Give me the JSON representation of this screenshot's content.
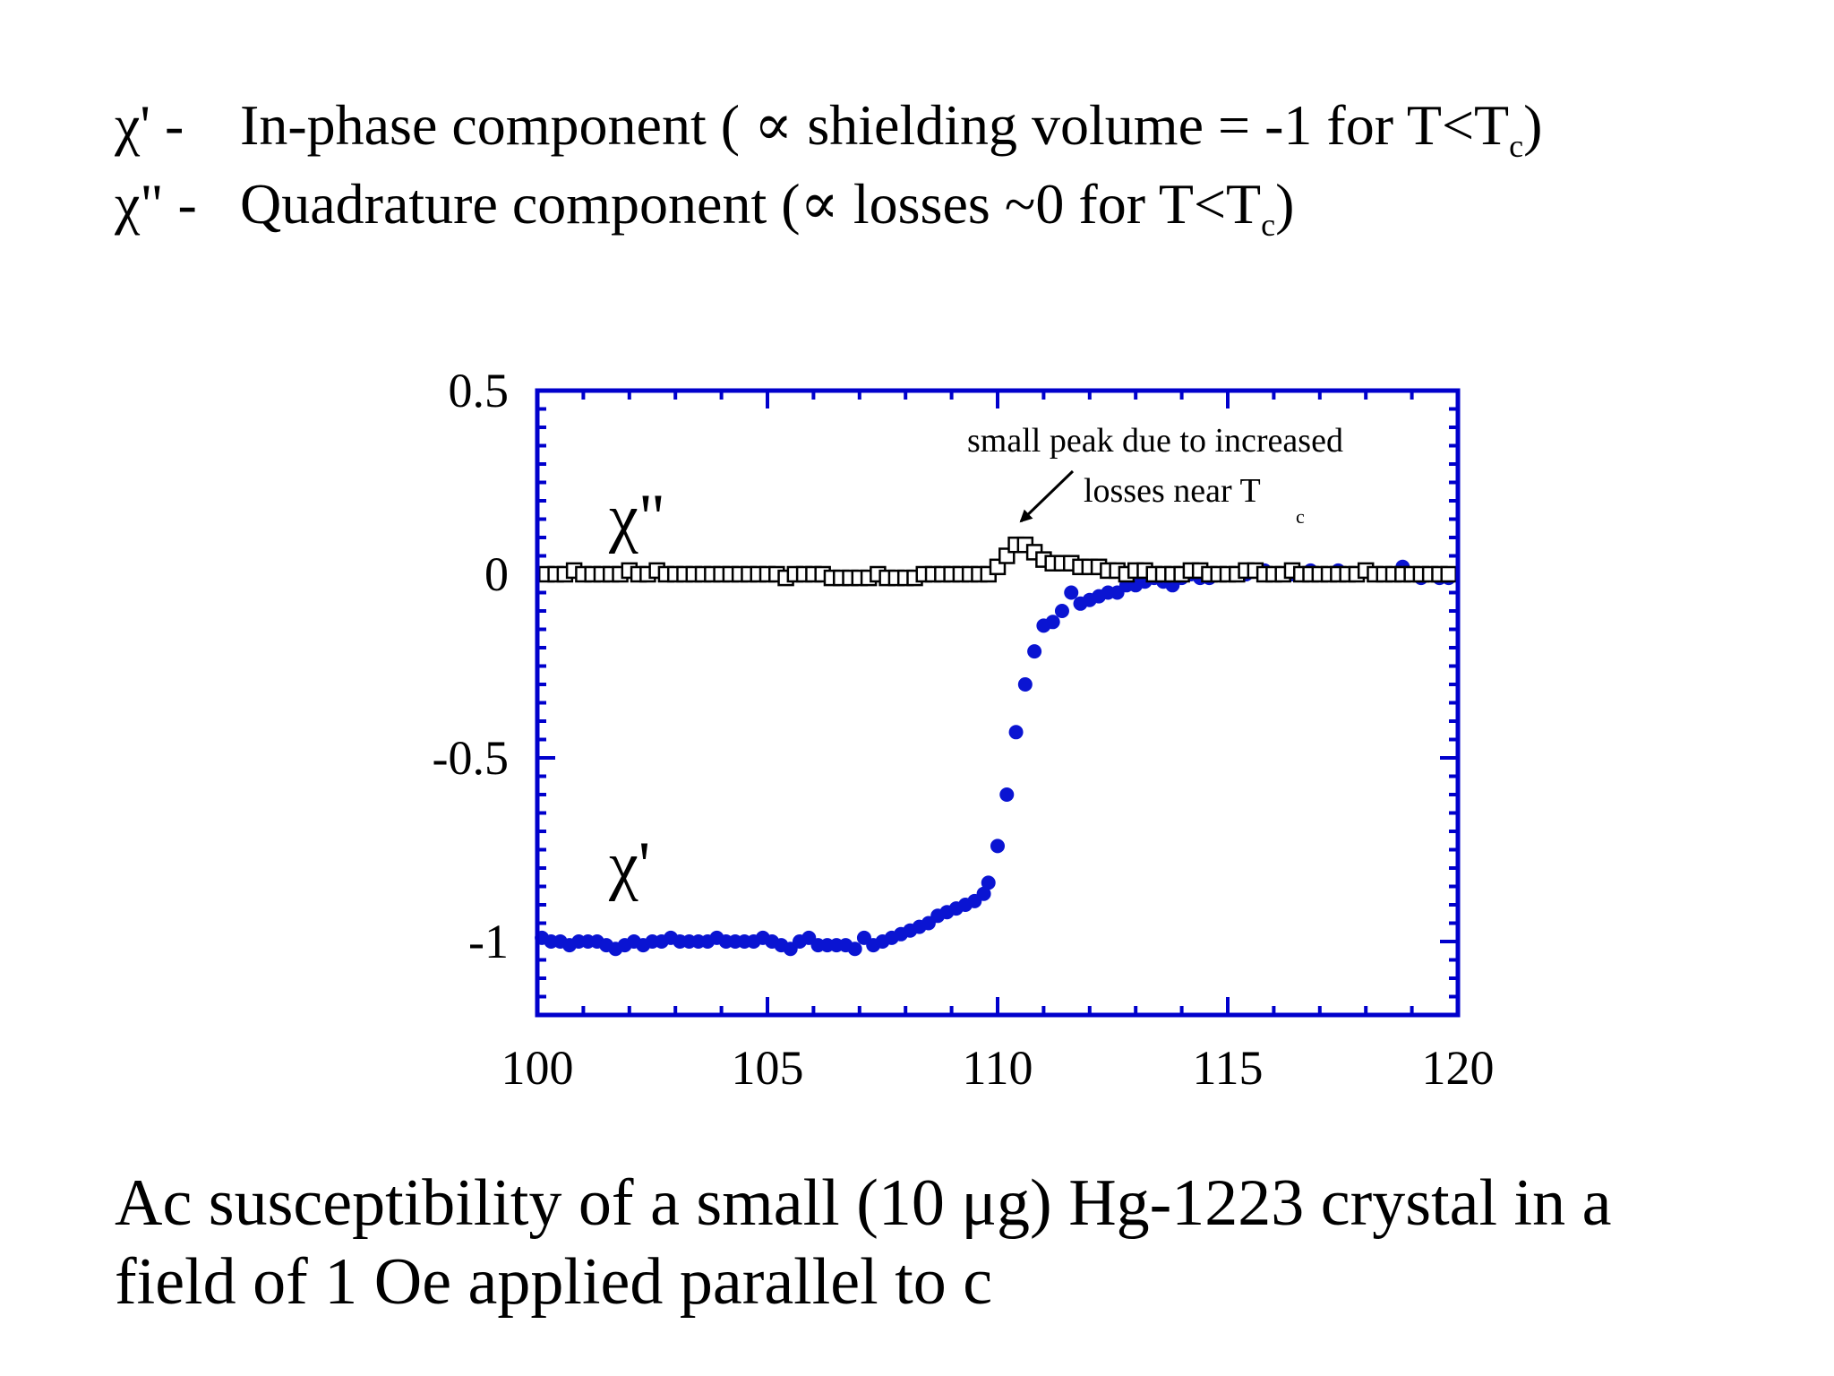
{
  "text_lines": [
    {
      "symbol": "χ' -",
      "text": "In-phase component ( ∝ shielding volume = -1 for T<T",
      "sub": "c",
      "end": ")"
    },
    {
      "symbol": "χ\" -",
      "text": "Quadrature component (∝ losses ~0 for T<T",
      "sub": "c",
      "end": ")"
    }
  ],
  "caption": {
    "line1": "Ac susceptibility of a small (10 μg) Hg-1223 crystal in a",
    "line2": "field of 1 Oe applied parallel to c"
  },
  "chart_data": {
    "type": "scatter",
    "xlim": [
      100,
      120
    ],
    "ylim": [
      -1.2,
      0.5
    ],
    "x_ticks": [
      100,
      105,
      110,
      115,
      120
    ],
    "y_ticks": [
      0.5,
      0,
      -0.5,
      -1
    ],
    "y_tick_labels": [
      "0.5",
      "0",
      "-0.5",
      "-1"
    ],
    "grid": false,
    "colors": {
      "frame": "#0000cc",
      "chi_prime": "#0a14d2",
      "chi_double_prime": "#000000"
    },
    "series": [
      {
        "name": "χ'",
        "marker": "filled-circle",
        "x": [
          100.1,
          100.3,
          100.5,
          100.7,
          100.9,
          101.1,
          101.3,
          101.5,
          101.7,
          101.9,
          102.1,
          102.3,
          102.5,
          102.7,
          102.9,
          103.1,
          103.3,
          103.5,
          103.7,
          103.9,
          104.1,
          104.3,
          104.5,
          104.7,
          104.9,
          105.1,
          105.3,
          105.5,
          105.7,
          105.9,
          106.1,
          106.3,
          106.5,
          106.7,
          106.9,
          107.1,
          107.3,
          107.5,
          107.7,
          107.9,
          108.1,
          108.3,
          108.5,
          108.7,
          108.9,
          109.1,
          109.3,
          109.5,
          109.7,
          109.8,
          110.0,
          110.2,
          110.4,
          110.6,
          110.8,
          111.0,
          111.2,
          111.4,
          111.6,
          111.8,
          112.0,
          112.2,
          112.4,
          112.6,
          112.8,
          113.0,
          113.2,
          113.4,
          113.6,
          113.8,
          114.0,
          114.2,
          114.4,
          114.6,
          114.8,
          115.0,
          115.2,
          115.4,
          115.6,
          115.8,
          116.0,
          116.2,
          116.4,
          116.6,
          116.8,
          117.0,
          117.2,
          117.4,
          117.6,
          117.8,
          118.0,
          118.2,
          118.4,
          118.6,
          118.8,
          119.0,
          119.2,
          119.4,
          119.6,
          119.8
        ],
        "y": [
          -0.99,
          -1.0,
          -1.0,
          -1.01,
          -1.0,
          -1.0,
          -1.0,
          -1.01,
          -1.02,
          -1.01,
          -1.0,
          -1.01,
          -1.0,
          -1.0,
          -0.99,
          -1.0,
          -1.0,
          -1.0,
          -1.0,
          -0.99,
          -1.0,
          -1.0,
          -1.0,
          -1.0,
          -0.99,
          -1.0,
          -1.01,
          -1.02,
          -1.0,
          -0.99,
          -1.01,
          -1.01,
          -1.01,
          -1.01,
          -1.02,
          -0.99,
          -1.01,
          -1.0,
          -0.99,
          -0.98,
          -0.97,
          -0.96,
          -0.95,
          -0.93,
          -0.92,
          -0.91,
          -0.9,
          -0.89,
          -0.87,
          -0.84,
          -0.74,
          -0.6,
          -0.43,
          -0.3,
          -0.21,
          -0.14,
          -0.13,
          -0.1,
          -0.05,
          -0.08,
          -0.07,
          -0.06,
          -0.05,
          -0.05,
          -0.03,
          -0.03,
          -0.02,
          -0.01,
          -0.02,
          -0.03,
          -0.01,
          0.0,
          -0.01,
          -0.01,
          0.0,
          0.0,
          0.0,
          0.0,
          0.01,
          0.01,
          0.0,
          0.0,
          0.0,
          0.0,
          0.01,
          0.0,
          0.0,
          0.01,
          0.0,
          0.0,
          0.01,
          0.0,
          0.0,
          0.0,
          0.02,
          0.0,
          -0.01,
          0.0,
          -0.01,
          -0.01
        ]
      },
      {
        "name": "χ\"",
        "marker": "open-square",
        "x": [
          100.2,
          100.4,
          100.6,
          100.8,
          101.0,
          101.2,
          101.4,
          101.6,
          101.8,
          102.0,
          102.2,
          102.4,
          102.6,
          102.8,
          103.0,
          103.2,
          103.4,
          103.6,
          103.8,
          104.0,
          104.2,
          104.4,
          104.6,
          104.8,
          105.0,
          105.2,
          105.4,
          105.6,
          105.8,
          106.0,
          106.2,
          106.4,
          106.6,
          106.8,
          107.0,
          107.2,
          107.4,
          107.6,
          107.8,
          108.0,
          108.2,
          108.4,
          108.6,
          108.8,
          109.0,
          109.2,
          109.4,
          109.6,
          109.8,
          110.0,
          110.2,
          110.4,
          110.6,
          110.8,
          111.0,
          111.2,
          111.4,
          111.6,
          111.8,
          112.0,
          112.2,
          112.4,
          112.6,
          112.8,
          113.0,
          113.2,
          113.4,
          113.6,
          113.8,
          114.0,
          114.2,
          114.4,
          114.6,
          114.8,
          115.0,
          115.2,
          115.4,
          115.6,
          115.8,
          116.0,
          116.2,
          116.4,
          116.6,
          116.8,
          117.0,
          117.2,
          117.4,
          117.6,
          117.8,
          118.0,
          118.2,
          118.4,
          118.6,
          118.8,
          119.0,
          119.2,
          119.4,
          119.6,
          119.8
        ],
        "y": [
          0.0,
          0.0,
          0.0,
          0.01,
          0.0,
          0.0,
          0.0,
          0.0,
          0.0,
          0.01,
          0.0,
          0.0,
          0.01,
          0.0,
          0.0,
          0.0,
          0.0,
          0.0,
          0.0,
          0.0,
          0.0,
          0.0,
          0.0,
          0.0,
          0.0,
          0.0,
          -0.01,
          0.0,
          0.0,
          0.0,
          0.0,
          -0.01,
          -0.01,
          -0.01,
          -0.01,
          -0.01,
          0.0,
          -0.01,
          -0.01,
          -0.01,
          -0.01,
          0.0,
          0.0,
          0.0,
          0.0,
          0.0,
          0.0,
          0.0,
          0.0,
          0.02,
          0.05,
          0.08,
          0.08,
          0.06,
          0.04,
          0.03,
          0.03,
          0.03,
          0.02,
          0.02,
          0.02,
          0.01,
          0.01,
          0.0,
          0.01,
          0.01,
          0.0,
          0.0,
          0.0,
          0.0,
          0.01,
          0.01,
          0.0,
          0.0,
          0.0,
          0.0,
          0.01,
          0.01,
          0.0,
          0.0,
          0.0,
          0.01,
          0.0,
          0.0,
          0.0,
          0.0,
          0.0,
          0.0,
          0.0,
          0.01,
          0.0,
          0.0,
          0.0,
          0.0,
          0.0,
          0.0,
          0.0,
          0.0,
          0.0
        ]
      }
    ],
    "labels": {
      "chi_double_prime": "χ\"",
      "chi_prime": "χ'"
    },
    "annotation": {
      "line1": "small peak due to increased",
      "line2": "losses near T",
      "sub": "c",
      "points_to": [
        110.4,
        0.08
      ]
    }
  }
}
